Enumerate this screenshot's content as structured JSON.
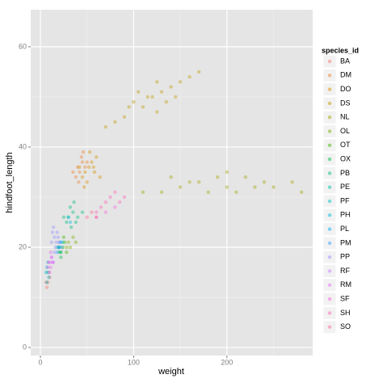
{
  "chart_data": {
    "type": "scatter",
    "x_label": "weight",
    "y_label": "hindfoot_length",
    "legend_title": "species_id",
    "xlim": [
      -10.4,
      292
    ],
    "ylim": [
      -1.6,
      67.4
    ],
    "xticks": [
      0,
      100,
      200
    ],
    "yticks": [
      0,
      20,
      40,
      60
    ],
    "x_minor": [
      50,
      150,
      250
    ],
    "y_minor": [
      10,
      30,
      50
    ],
    "grid": true,
    "legend": "right",
    "series": [
      {
        "name": "BA",
        "color": "#F8766D",
        "x": [
          8,
          10,
          7,
          9,
          6
        ],
        "values": [
          13,
          14,
          12,
          15,
          13
        ]
      },
      {
        "name": "DM",
        "color": "#EA8331",
        "x": [
          40,
          45,
          42,
          38,
          48,
          44,
          35,
          50,
          41,
          46
        ],
        "values": [
          36,
          37,
          35,
          34,
          36,
          38,
          35,
          37,
          33,
          39
        ]
      },
      {
        "name": "DO",
        "color": "#D89000",
        "x": [
          48,
          52,
          45,
          55,
          50,
          58,
          42,
          60,
          47,
          53,
          64,
          57
        ],
        "values": [
          35,
          36,
          34,
          37,
          33,
          35,
          36,
          38,
          32,
          39,
          34,
          36
        ]
      },
      {
        "name": "DS",
        "color": "#C09B00",
        "x": [
          120,
          110,
          130,
          100,
          140,
          125,
          90,
          150,
          115,
          135,
          80,
          160,
          105,
          145,
          70,
          125,
          170,
          95
        ],
        "values": [
          50,
          48,
          51,
          49,
          52,
          47,
          46,
          53,
          50,
          49,
          45,
          54,
          51,
          50,
          44,
          53,
          55,
          48
        ]
      },
      {
        "name": "NL",
        "color": "#A3A500",
        "x": [
          150,
          170,
          200,
          180,
          220,
          240,
          130,
          250,
          190,
          210,
          160,
          230,
          270,
          110,
          140,
          200,
          280
        ],
        "values": [
          32,
          33,
          32,
          31,
          34,
          33,
          31,
          32,
          34,
          31,
          33,
          32,
          33,
          31,
          34,
          35,
          31
        ]
      },
      {
        "name": "OL",
        "color": "#7CAE00",
        "x": [
          30,
          32,
          35,
          28,
          38
        ],
        "values": [
          21,
          20,
          22,
          20,
          21
        ]
      },
      {
        "name": "OT",
        "color": "#39B600",
        "x": [
          24,
          22,
          26,
          20,
          28,
          25
        ],
        "values": [
          20,
          19,
          21,
          20,
          19,
          22
        ]
      },
      {
        "name": "OX",
        "color": "#00BB4E",
        "x": [
          20,
          22
        ],
        "values": [
          19,
          18
        ]
      },
      {
        "name": "PB",
        "color": "#00BF7D",
        "x": [
          30,
          35,
          28,
          40,
          32,
          38,
          25,
          45,
          33,
          36
        ],
        "values": [
          26,
          27,
          25,
          26,
          28,
          25,
          26,
          27,
          24,
          29
        ]
      },
      {
        "name": "PE",
        "color": "#00C1A3",
        "x": [
          20,
          22,
          18,
          24
        ],
        "values": [
          20,
          19,
          20,
          21
        ]
      },
      {
        "name": "PF",
        "color": "#00BFC4",
        "x": [
          8,
          7,
          9,
          6,
          8,
          7
        ],
        "values": [
          15,
          16,
          14,
          15,
          17,
          13
        ]
      },
      {
        "name": "PH",
        "color": "#00BAE0",
        "x": [
          30,
          32
        ],
        "values": [
          26,
          25
        ]
      },
      {
        "name": "PL",
        "color": "#00B0F6",
        "x": [
          20,
          22
        ],
        "values": [
          20,
          21
        ]
      },
      {
        "name": "PM",
        "color": "#35A2FF",
        "x": [
          20,
          21,
          18,
          23
        ],
        "values": [
          20,
          21,
          19,
          20
        ]
      },
      {
        "name": "PP",
        "color": "#9590FF",
        "x": [
          15,
          17,
          13,
          16,
          19,
          14,
          18,
          12,
          20,
          15
        ],
        "values": [
          22,
          21,
          23,
          20,
          22,
          24,
          23,
          21,
          21,
          19
        ]
      },
      {
        "name": "RF",
        "color": "#C77CFF",
        "x": [
          13,
          12,
          14
        ],
        "values": [
          17,
          18,
          17
        ]
      },
      {
        "name": "RM",
        "color": "#E76BF3",
        "x": [
          10,
          11,
          9,
          12,
          10,
          8,
          13,
          11
        ],
        "values": [
          17,
          16,
          17,
          18,
          15,
          16,
          17,
          19
        ]
      },
      {
        "name": "SF",
        "color": "#FA62DB",
        "x": [
          70,
          60,
          80
        ],
        "values": [
          27,
          26,
          28
        ]
      },
      {
        "name": "SH",
        "color": "#FF62BC",
        "x": [
          70,
          75,
          65,
          80,
          85,
          60,
          90
        ],
        "values": [
          29,
          30,
          28,
          31,
          29,
          27,
          30
        ]
      },
      {
        "name": "SO",
        "color": "#FF6C91",
        "x": [
          50,
          55,
          60
        ],
        "values": [
          26,
          27,
          26
        ]
      }
    ]
  }
}
